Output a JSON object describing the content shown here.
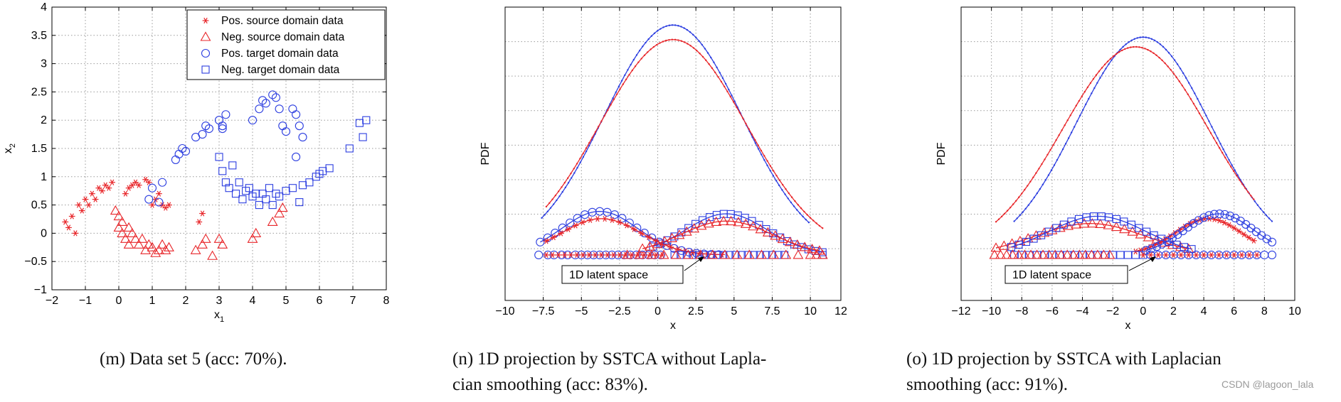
{
  "chart_data": [
    {
      "id": "m",
      "type": "scatter",
      "title": "",
      "xlabel": "x",
      "xlabel_sub": "1",
      "ylabel": "x",
      "ylabel_sub": "2",
      "xlim": [
        -2,
        8
      ],
      "ylim": [
        -1,
        4
      ],
      "xticks": [
        -2,
        -1,
        0,
        1,
        2,
        3,
        4,
        5,
        6,
        7,
        8
      ],
      "yticks": [
        -1,
        -0.5,
        0,
        0.5,
        1,
        1.5,
        2,
        2.5,
        3,
        3.5,
        4
      ],
      "ytick_labels": [
        "−1",
        "−0.5",
        "0",
        "0.5",
        "1",
        "1.5",
        "2",
        "2.5",
        "3",
        "3.5",
        "4"
      ],
      "xtick_labels": [
        "−2",
        "−1",
        "0",
        "1",
        "2",
        "3",
        "4",
        "5",
        "6",
        "7",
        "8"
      ],
      "grid": true,
      "legend_position": "top-right",
      "series": [
        {
          "name": "Pos. source domain data",
          "marker": "star",
          "color": "#e8262a",
          "points": [
            [
              -1.6,
              0.2
            ],
            [
              -1.5,
              0.1
            ],
            [
              -1.4,
              0.3
            ],
            [
              -1.3,
              0.0
            ],
            [
              -1.2,
              0.5
            ],
            [
              -1.1,
              0.4
            ],
            [
              -1.0,
              0.6
            ],
            [
              -0.9,
              0.5
            ],
            [
              -0.8,
              0.7
            ],
            [
              -0.7,
              0.6
            ],
            [
              -0.6,
              0.8
            ],
            [
              -0.5,
              0.75
            ],
            [
              -0.4,
              0.85
            ],
            [
              -0.3,
              0.8
            ],
            [
              -0.2,
              0.9
            ],
            [
              0.2,
              0.7
            ],
            [
              0.3,
              0.8
            ],
            [
              0.4,
              0.85
            ],
            [
              0.5,
              0.9
            ],
            [
              0.6,
              0.85
            ],
            [
              0.8,
              0.95
            ],
            [
              0.9,
              0.9
            ],
            [
              1.0,
              0.5
            ],
            [
              1.1,
              0.6
            ],
            [
              1.2,
              0.7
            ],
            [
              1.3,
              0.5
            ],
            [
              1.4,
              0.45
            ],
            [
              1.5,
              0.5
            ],
            [
              2.4,
              0.2
            ],
            [
              2.5,
              0.35
            ]
          ]
        },
        {
          "name": "Neg. source domain data",
          "marker": "triangle",
          "color": "#e8262a",
          "points": [
            [
              -0.1,
              0.4
            ],
            [
              0.0,
              0.3
            ],
            [
              0.0,
              0.1
            ],
            [
              0.1,
              0.2
            ],
            [
              0.1,
              0.0
            ],
            [
              0.2,
              -0.1
            ],
            [
              0.3,
              0.1
            ],
            [
              0.3,
              -0.2
            ],
            [
              0.4,
              0.0
            ],
            [
              0.5,
              -0.1
            ],
            [
              0.6,
              -0.2
            ],
            [
              0.7,
              -0.1
            ],
            [
              0.8,
              -0.3
            ],
            [
              0.9,
              -0.2
            ],
            [
              1.0,
              -0.25
            ],
            [
              1.1,
              -0.35
            ],
            [
              1.2,
              -0.3
            ],
            [
              1.3,
              -0.2
            ],
            [
              1.4,
              -0.3
            ],
            [
              1.5,
              -0.25
            ],
            [
              2.3,
              -0.3
            ],
            [
              2.5,
              -0.2
            ],
            [
              2.6,
              -0.1
            ],
            [
              2.8,
              -0.4
            ],
            [
              3.0,
              -0.1
            ],
            [
              3.1,
              -0.2
            ],
            [
              4.0,
              -0.1
            ],
            [
              4.1,
              0.0
            ],
            [
              4.6,
              0.2
            ],
            [
              4.8,
              0.35
            ],
            [
              4.9,
              0.45
            ]
          ]
        },
        {
          "name": "Pos. target domain data",
          "marker": "circle",
          "color": "#2b3de0",
          "points": [
            [
              0.9,
              0.6
            ],
            [
              1.0,
              0.8
            ],
            [
              1.3,
              0.9
            ],
            [
              1.2,
              0.55
            ],
            [
              1.7,
              1.3
            ],
            [
              1.8,
              1.4
            ],
            [
              1.9,
              1.5
            ],
            [
              2.0,
              1.45
            ],
            [
              2.3,
              1.7
            ],
            [
              2.5,
              1.75
            ],
            [
              2.6,
              1.9
            ],
            [
              2.7,
              1.85
            ],
            [
              3.0,
              2.0
            ],
            [
              3.1,
              1.9
            ],
            [
              3.2,
              2.1
            ],
            [
              3.1,
              1.85
            ],
            [
              4.0,
              2.0
            ],
            [
              4.2,
              2.2
            ],
            [
              4.3,
              2.35
            ],
            [
              4.4,
              2.3
            ],
            [
              4.6,
              2.45
            ],
            [
              4.7,
              2.4
            ],
            [
              4.8,
              2.2
            ],
            [
              4.9,
              1.9
            ],
            [
              5.0,
              1.8
            ],
            [
              5.2,
              2.2
            ],
            [
              5.3,
              2.1
            ],
            [
              5.4,
              1.9
            ],
            [
              5.5,
              1.7
            ],
            [
              5.3,
              1.35
            ]
          ]
        },
        {
          "name": "Neg. target domain data",
          "marker": "square",
          "color": "#2b3de0",
          "points": [
            [
              3.0,
              1.35
            ],
            [
              3.1,
              1.1
            ],
            [
              3.2,
              0.9
            ],
            [
              3.3,
              0.8
            ],
            [
              3.4,
              1.2
            ],
            [
              3.5,
              0.7
            ],
            [
              3.6,
              0.9
            ],
            [
              3.7,
              0.6
            ],
            [
              3.8,
              0.75
            ],
            [
              3.9,
              0.8
            ],
            [
              4.0,
              0.65
            ],
            [
              4.1,
              0.7
            ],
            [
              4.2,
              0.5
            ],
            [
              4.3,
              0.7
            ],
            [
              4.4,
              0.6
            ],
            [
              4.5,
              0.8
            ],
            [
              4.6,
              0.5
            ],
            [
              4.7,
              0.7
            ],
            [
              4.8,
              0.65
            ],
            [
              5.0,
              0.75
            ],
            [
              5.2,
              0.8
            ],
            [
              5.4,
              0.55
            ],
            [
              5.5,
              0.85
            ],
            [
              5.7,
              0.9
            ],
            [
              5.9,
              1.0
            ],
            [
              6.0,
              1.05
            ],
            [
              6.1,
              1.1
            ],
            [
              6.3,
              1.15
            ],
            [
              6.9,
              1.5
            ],
            [
              7.2,
              1.95
            ],
            [
              7.3,
              1.7
            ],
            [
              7.4,
              2.0
            ]
          ]
        }
      ],
      "caption_label": "(m)",
      "caption_lines": [
        "Data set 5 (acc: 70%)."
      ]
    },
    {
      "id": "n",
      "type": "line",
      "title": "",
      "xlabel": "x",
      "ylabel": "PDF",
      "xlim": [
        -10,
        12
      ],
      "xticks": [
        -10,
        -7.5,
        -5,
        -2.5,
        0,
        2.5,
        5,
        7.5,
        10,
        12
      ],
      "xtick_labels": [
        "−10",
        "−7.5",
        "−5",
        "−2.5",
        "0",
        "2.5",
        "5",
        "7.5",
        "10",
        "12"
      ],
      "grid": true,
      "annotation": "1D latent space",
      "curves": [
        {
          "color": "#2b3de0",
          "marker": "dot",
          "mu": 1.0,
          "sigma": 4.5,
          "peak": 0.95,
          "xmin": -7.6,
          "xmax": 9.9
        },
        {
          "color": "#e8262a",
          "marker": "dot",
          "mu": 1.0,
          "sigma": 4.8,
          "peak": 0.89,
          "xmin": -7.3,
          "xmax": 10.8
        },
        {
          "color": "#2b3de0",
          "marker": "circle",
          "mu": -3.8,
          "sigma": 2.5,
          "peak": 0.18,
          "xmin": -7.7,
          "xmax": 4.0
        },
        {
          "color": "#e8262a",
          "marker": "star",
          "mu": -3.7,
          "sigma": 2.6,
          "peak": 0.15,
          "xmin": -7.3,
          "xmax": 4.2
        },
        {
          "color": "#2b3de0",
          "marker": "square",
          "mu": 4.5,
          "sigma": 2.7,
          "peak": 0.17,
          "xmin": -0.3,
          "xmax": 10.8
        },
        {
          "color": "#e8262a",
          "marker": "triangle",
          "mu": 4.5,
          "sigma": 3.0,
          "peak": 0.14,
          "xmin": -1.0,
          "xmax": 10.6
        }
      ],
      "baseline_points": {
        "blue_circles": [
          -7.8,
          -7.2,
          -6.8,
          -6.3,
          -5.9,
          -5.4,
          -5.0,
          -4.6,
          -4.2,
          -3.8,
          -3.4,
          -3.0,
          -2.6,
          -2.2,
          -1.8,
          -1.4,
          -1.0,
          -0.6,
          -0.2,
          0.2
        ],
        "red_stars": [
          -7.3,
          -6.9,
          -6.5,
          -6.1,
          -5.7,
          -5.3,
          -4.9,
          -4.5,
          -4.1,
          -3.7,
          -3.3,
          -2.9,
          -2.5,
          -2.1,
          -1.7,
          -1.3,
          -0.9,
          -0.5,
          -0.1,
          0.3
        ],
        "blue_squares": [
          1.1,
          1.5,
          1.9,
          2.3,
          2.7,
          3.1,
          3.5,
          3.9,
          4.3,
          4.7,
          5.1,
          5.5,
          5.9,
          6.3,
          6.7,
          7.1,
          7.5,
          7.9,
          8.3,
          10.8
        ],
        "red_triangles": [
          -2.0,
          -1.2,
          -0.4,
          0.4,
          1.2,
          2.0,
          2.8,
          3.6,
          4.4,
          5.2,
          6.0,
          6.8,
          7.6,
          8.4,
          9.2,
          10.0,
          10.4,
          10.8
        ]
      },
      "caption_label": "(n)",
      "caption_lines": [
        "1D projection by SSTCA without Lapla-",
        "cian smoothing (acc: 83%)."
      ]
    },
    {
      "id": "o",
      "type": "line",
      "title": "",
      "xlabel": "x",
      "ylabel": "PDF",
      "xlim": [
        -12,
        10
      ],
      "xticks": [
        -12,
        -10,
        -8,
        -6,
        -4,
        -2,
        0,
        2,
        4,
        6,
        8,
        10
      ],
      "xtick_labels": [
        "−12",
        "−10",
        "−8",
        "−6",
        "−4",
        "−2",
        "0",
        "2",
        "4",
        "6",
        "8",
        "10"
      ],
      "grid": true,
      "annotation": "1D latent space",
      "curves": [
        {
          "color": "#2b3de0",
          "marker": "dot",
          "mu": 0.0,
          "sigma": 4.4,
          "peak": 0.9,
          "xmin": -8.5,
          "xmax": 8.5
        },
        {
          "color": "#e8262a",
          "marker": "dot",
          "mu": -0.5,
          "sigma": 4.8,
          "peak": 0.86,
          "xmin": -9.7,
          "xmax": 7.3
        },
        {
          "color": "#e8262a",
          "marker": "triangle",
          "mu": -3.5,
          "sigma": 3.6,
          "peak": 0.13,
          "xmin": -9.7,
          "xmax": 3.0
        },
        {
          "color": "#2b3de0",
          "marker": "square",
          "mu": -3.0,
          "sigma": 3.2,
          "peak": 0.16,
          "xmin": -8.7,
          "xmax": 3.2
        },
        {
          "color": "#e8262a",
          "marker": "star",
          "mu": 4.3,
          "sigma": 2.2,
          "peak": 0.15,
          "xmin": -0.5,
          "xmax": 7.3
        },
        {
          "color": "#2b3de0",
          "marker": "circle",
          "mu": 5.0,
          "sigma": 2.3,
          "peak": 0.17,
          "xmin": 0.2,
          "xmax": 8.5
        }
      ],
      "baseline_points": {
        "blue_squares": [
          -8.5,
          -8.0,
          -7.5,
          -7.0,
          -6.5,
          -6.0,
          -5.5,
          -5.0,
          -4.5,
          -4.0,
          -3.5,
          -3.0,
          -2.5,
          -2.0,
          -1.5,
          -1.0,
          -0.5,
          0.0
        ],
        "red_triangles": [
          -9.8,
          -9.4,
          -9.0,
          -8.6,
          -8.2,
          -7.8,
          -7.4,
          -7.0,
          -6.6,
          -6.2,
          -5.8,
          -5.4,
          -5.0,
          -4.6,
          -4.2,
          -3.8,
          -3.4,
          -3.0,
          -2.6,
          -2.2
        ],
        "red_stars": [
          0.0,
          0.5,
          1.0,
          1.5,
          2.0,
          2.5,
          3.0,
          3.5,
          4.0,
          4.5,
          5.0,
          5.5,
          6.0,
          6.5,
          7.0,
          7.5
        ],
        "blue_circles": [
          0.5,
          1.0,
          1.5,
          2.0,
          2.5,
          3.0,
          3.5,
          4.0,
          4.5,
          5.0,
          5.5,
          6.0,
          6.5,
          7.0,
          7.5,
          8.0,
          8.5
        ]
      },
      "caption_label": "(o)",
      "caption_lines": [
        "1D projection by SSTCA with Laplacian",
        "smoothing (acc: 91%)."
      ]
    }
  ],
  "watermark": "CSDN @lagoon_lala",
  "colors": {
    "red": "#e8262a",
    "blue": "#2b3de0",
    "grid": "#9a9a9a",
    "axis": "#000000"
  }
}
